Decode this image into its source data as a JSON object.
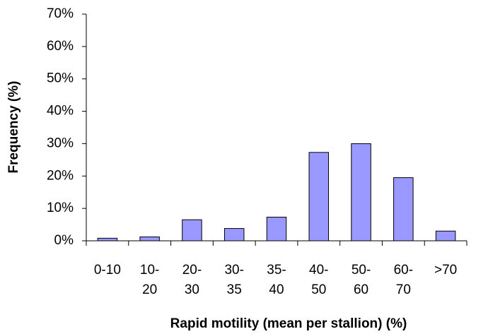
{
  "chart_data": {
    "type": "bar",
    "x_label": "Rapid motility (mean per stallion) (%)",
    "y_label": "Frequency (%)",
    "categories": [
      "0-10",
      "10-20",
      "20-30",
      "30-35",
      "35-40",
      "40-50",
      "50-60",
      "60-70",
      ">70"
    ],
    "values": [
      0.8,
      1.2,
      6.5,
      3.8,
      7.3,
      27.3,
      30,
      19.5,
      3
    ],
    "color": "#9999ff",
    "ylim": [
      0,
      70
    ],
    "yticks": [
      {
        "value": 0,
        "label": "0%"
      },
      {
        "value": 10,
        "label": "10%"
      },
      {
        "value": 20,
        "label": "20%"
      },
      {
        "value": 30,
        "label": "30%"
      },
      {
        "value": 40,
        "label": "40%"
      },
      {
        "value": 50,
        "label": "50%"
      },
      {
        "value": 60,
        "label": "60%"
      },
      {
        "value": 70,
        "label": "70%"
      }
    ],
    "grid": false
  }
}
